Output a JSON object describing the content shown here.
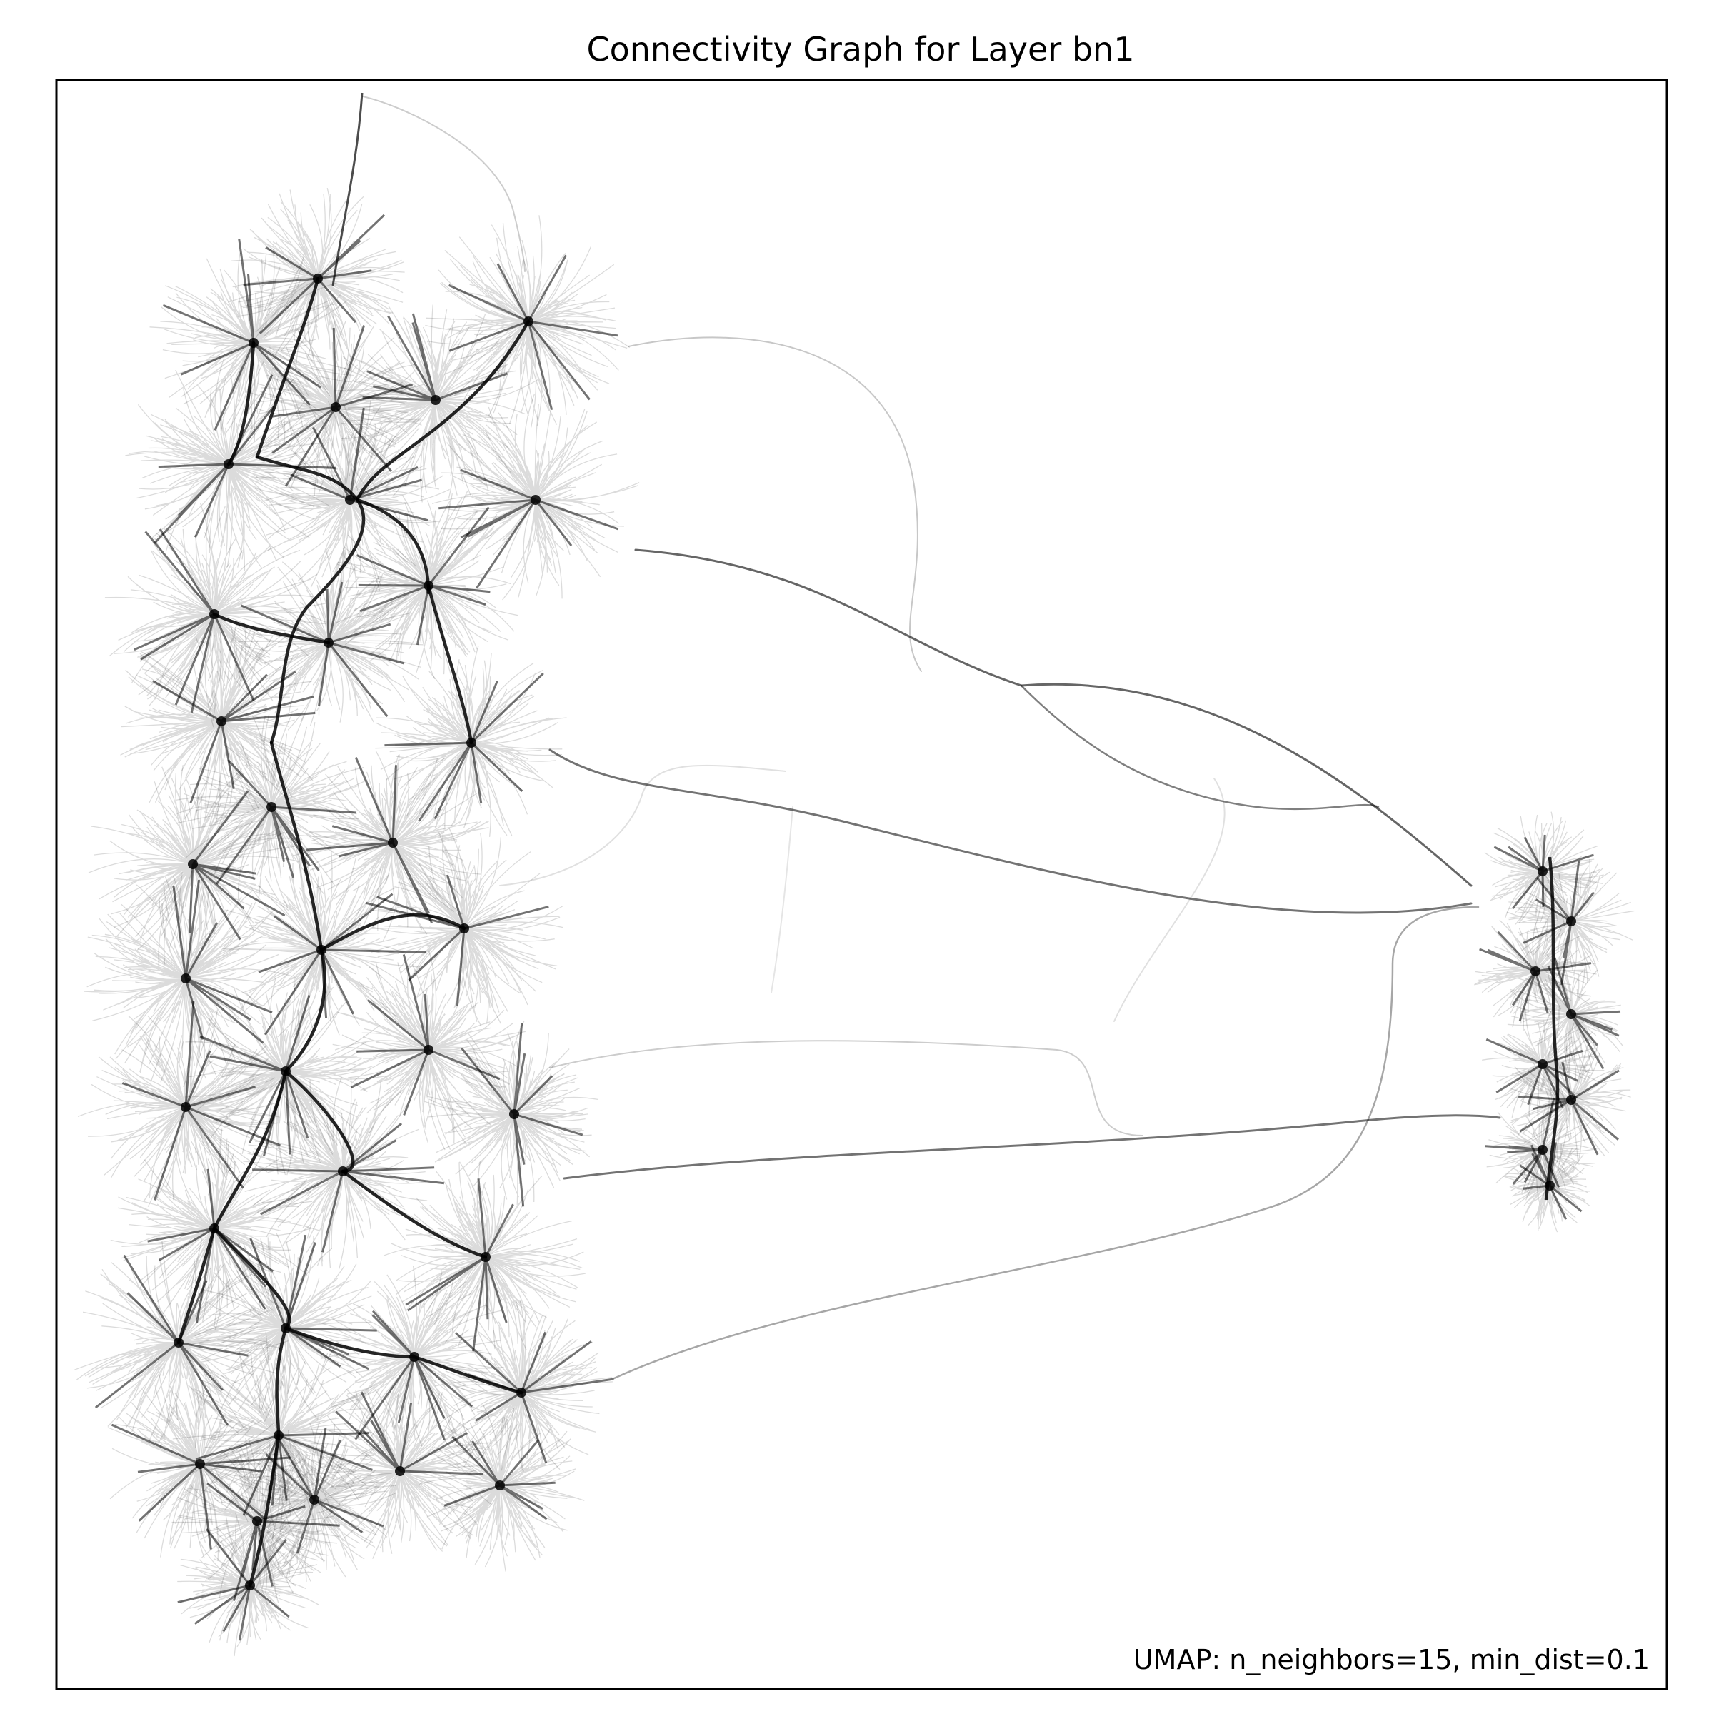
{
  "figure": {
    "title": "Connectivity Graph for Layer bn1",
    "annotation": "UMAP: n_neighbors=15, min_dist=0.1",
    "colors": {
      "background": "#ffffff",
      "frame": "#000000",
      "edge": "#000000",
      "text": "#000000"
    }
  },
  "chart_data": {
    "type": "network-graph",
    "title": "Connectivity Graph for Layer bn1",
    "annotation": "UMAP: n_neighbors=15, min_dist=0.1",
    "layout_method": "UMAP",
    "parameters": {
      "n_neighbors": 15,
      "min_dist": 0.1
    },
    "axes_visible": false,
    "grid": false,
    "legend": "none",
    "edge_color": "#000000",
    "clusters": [
      {
        "id": "large-cluster",
        "relative_size": "large"
      },
      {
        "id": "small-cluster",
        "relative_size": "small"
      }
    ],
    "inter_cluster_edges": "several long bundled edges link the large cluster to the small cluster"
  }
}
